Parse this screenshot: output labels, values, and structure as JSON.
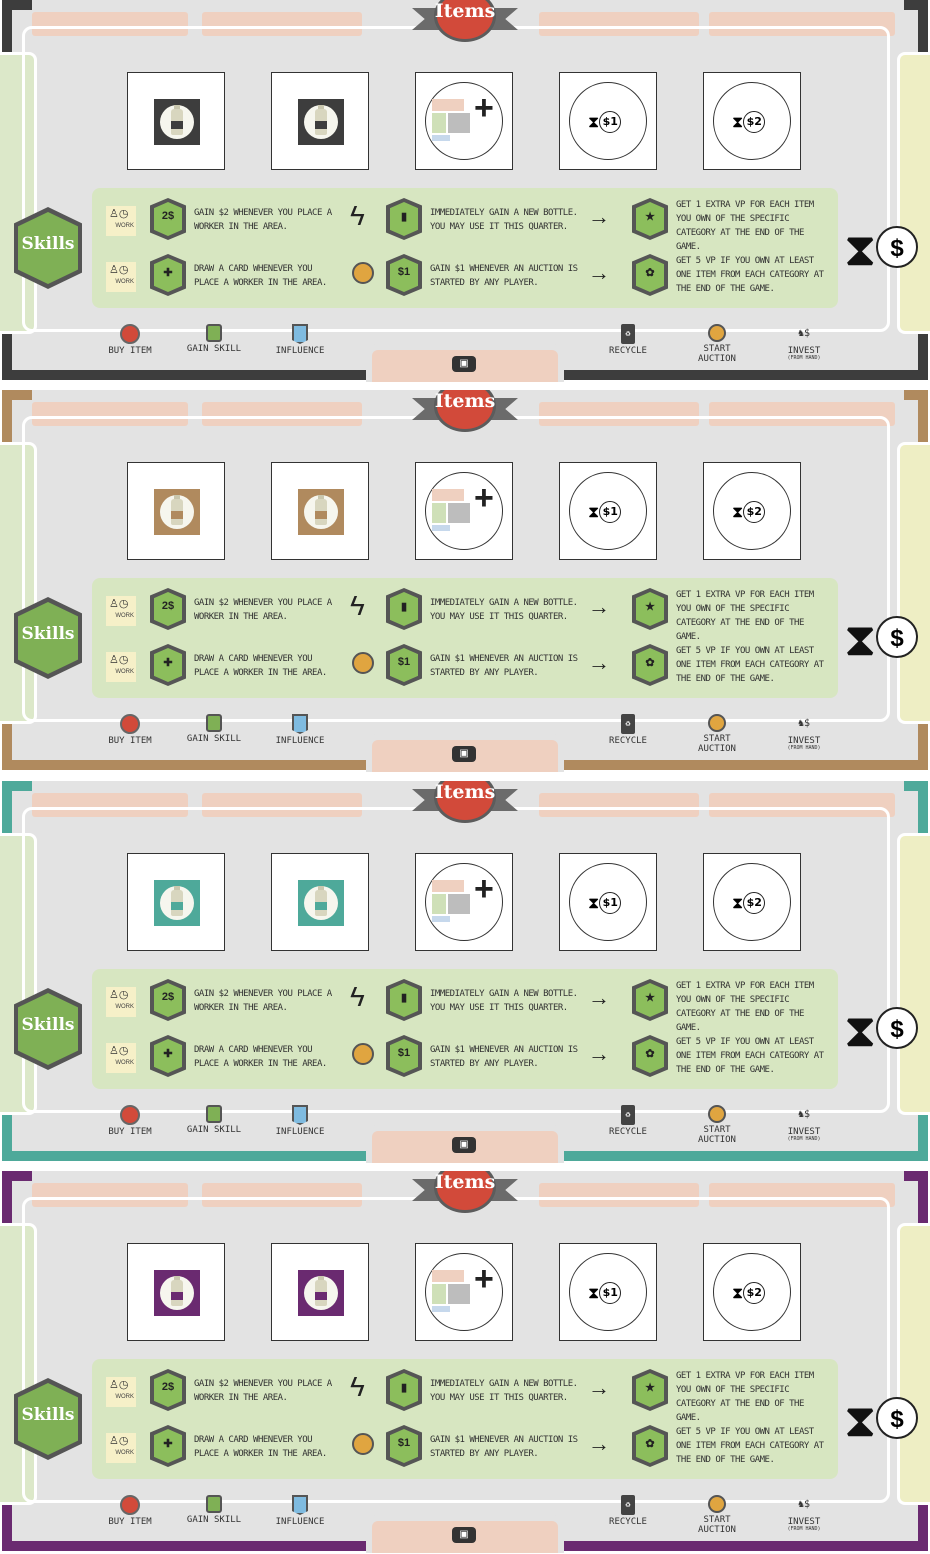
{
  "banner_label": "Items",
  "skills_label": "Skills",
  "work_label": "WORK",
  "skills": {
    "s1": "Gain $2 whenever you place a worker in the area.",
    "s1_badge": "2$",
    "s2": "Draw a card whenever you place a worker in the area.",
    "s2_badge": "✚",
    "s3": "Immediately gain a new bottle. You may use it this quarter.",
    "s4": "Gain $1 whenever an auction is started by any player.",
    "s4_badge": "$1",
    "s5": "Get 1 extra VP for each item you own of the specific category at the end of the game.",
    "s6": "Get 5 VP if you own at least one item from each category at the end of the game."
  },
  "items": {
    "coin1": "$1",
    "coin2": "$2",
    "hourglass": "⧗",
    "plus": "+"
  },
  "big_dollar": "$",
  "legend": {
    "buy": "Buy item",
    "skill": "Gain skill",
    "influence": "Influence",
    "recycle": "Recycle",
    "auction": "Start Auction",
    "invest": "Invest",
    "invest_sub": "(from hand)"
  },
  "player_colors": [
    "#3d3d3d",
    "#b08a5e",
    "#4ea99a",
    "#6a2a70"
  ],
  "bottle_colors": [
    "#3d3d3d",
    "#b08a5e",
    "#4ea99a",
    "#6a2a70"
  ]
}
